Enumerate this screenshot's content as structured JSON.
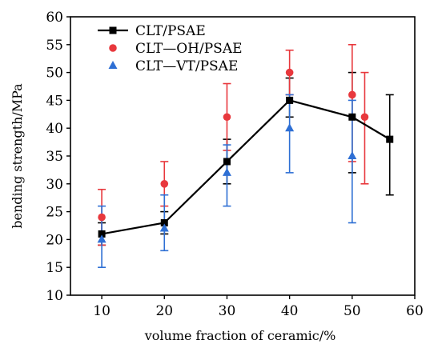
{
  "chart_data": {
    "type": "scatter",
    "xlabel": "volume fraction of ceramic/%",
    "ylabel": "bending strength/MPa",
    "xlim": [
      5,
      60
    ],
    "ylim": [
      10,
      60
    ],
    "xticks": [
      10,
      20,
      30,
      40,
      50,
      60
    ],
    "yticks": [
      10,
      15,
      20,
      25,
      30,
      35,
      40,
      45,
      50,
      55,
      60
    ],
    "legend_position": "top-left",
    "grid": false,
    "series": [
      {
        "name": "CLT/PSAE",
        "color": "#000000",
        "marker": "square",
        "line": true,
        "x": [
          10,
          20,
          30,
          40,
          50,
          56
        ],
        "y": [
          21,
          23,
          34,
          45,
          42,
          38
        ],
        "err_low": [
          19,
          21,
          30,
          42,
          32,
          28
        ],
        "err_high": [
          23,
          25,
          38,
          49,
          50,
          46
        ]
      },
      {
        "name": "CLT—OH/PSAE",
        "color": "#e8383d",
        "marker": "circle",
        "line": false,
        "x": [
          10,
          20,
          30,
          40,
          50,
          52
        ],
        "y": [
          24,
          30,
          42,
          50,
          46,
          42
        ],
        "err_low": [
          19,
          26,
          36,
          46,
          34,
          30
        ],
        "err_high": [
          29,
          34,
          48,
          54,
          55,
          50
        ]
      },
      {
        "name": "CLT—VT/PSAE",
        "color": "#2e6fd4",
        "marker": "triangle",
        "line": false,
        "x": [
          10,
          20,
          30,
          40,
          50
        ],
        "y": [
          20,
          22,
          32,
          40,
          35
        ],
        "err_low": [
          15,
          18,
          26,
          32,
          23
        ],
        "err_high": [
          26,
          28,
          37,
          46,
          45
        ]
      }
    ]
  }
}
